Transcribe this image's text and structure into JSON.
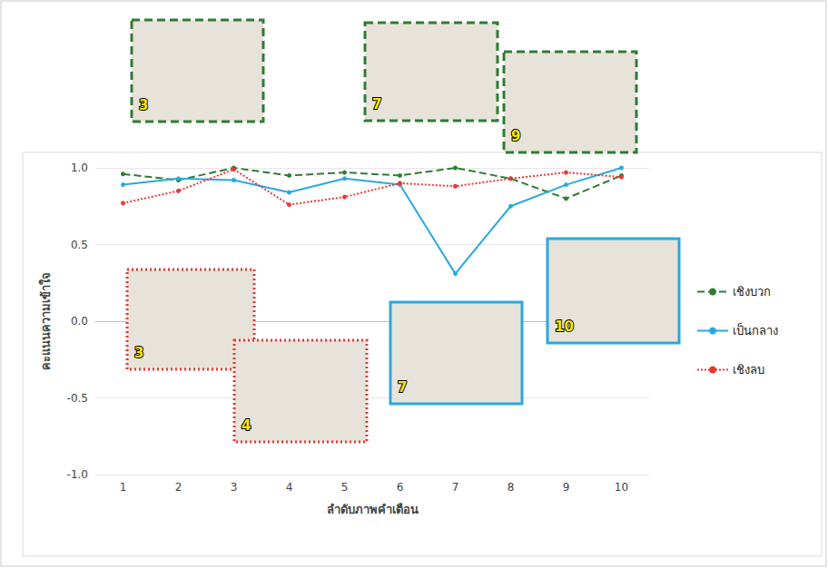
{
  "chart_data": {
    "type": "line",
    "x_label": "ลำดับภาพคำเตือน",
    "y_label": "คะแนนความเข้าใจ",
    "categories": [
      "1",
      "2",
      "3",
      "4",
      "5",
      "6",
      "7",
      "8",
      "9",
      "10"
    ],
    "series": [
      {
        "name": "เชิงบวก",
        "color": "#2e7d32",
        "line_style": "dashed",
        "marker": "circle",
        "values": [
          0.96,
          0.92,
          1.0,
          0.95,
          0.97,
          0.95,
          1.0,
          0.93,
          0.8,
          0.95
        ]
      },
      {
        "name": "เป็นกลาง",
        "color": "#29a9e0",
        "line_style": "solid",
        "marker": "circle",
        "values": [
          0.89,
          0.93,
          0.92,
          0.84,
          0.93,
          0.89,
          0.31,
          0.75,
          0.89,
          1.0
        ]
      },
      {
        "name": "เชิงลบ",
        "color": "#e53935",
        "line_style": "dotted",
        "marker": "circle",
        "values": [
          0.77,
          0.85,
          0.99,
          0.76,
          0.81,
          0.9,
          0.88,
          0.93,
          0.97,
          0.94
        ]
      }
    ],
    "ylim": [
      -1.0,
      1.0
    ],
    "yticks": [
      {
        "value": -1.0,
        "label": "-1.0"
      },
      {
        "value": -0.5,
        "label": "-0.5"
      },
      {
        "value": 0,
        "label": "0.0"
      },
      {
        "value": 0.5,
        "label": "0.5"
      },
      {
        "value": 1.0,
        "label": "1.0"
      }
    ],
    "grid": true,
    "legend": "right",
    "annotations": [
      {
        "text": "3",
        "series": "เชิงบวก"
      },
      {
        "text": "7",
        "series": "เชิงบวก"
      },
      {
        "text": "9",
        "series": "เชิงบวก"
      },
      {
        "text": "3",
        "series": "เชิงลบ"
      },
      {
        "text": "4",
        "series": "เชิงลบ"
      },
      {
        "text": "7",
        "series": "เป็นกลาง"
      },
      {
        "text": "10",
        "series": "เป็นกลาง"
      }
    ]
  }
}
